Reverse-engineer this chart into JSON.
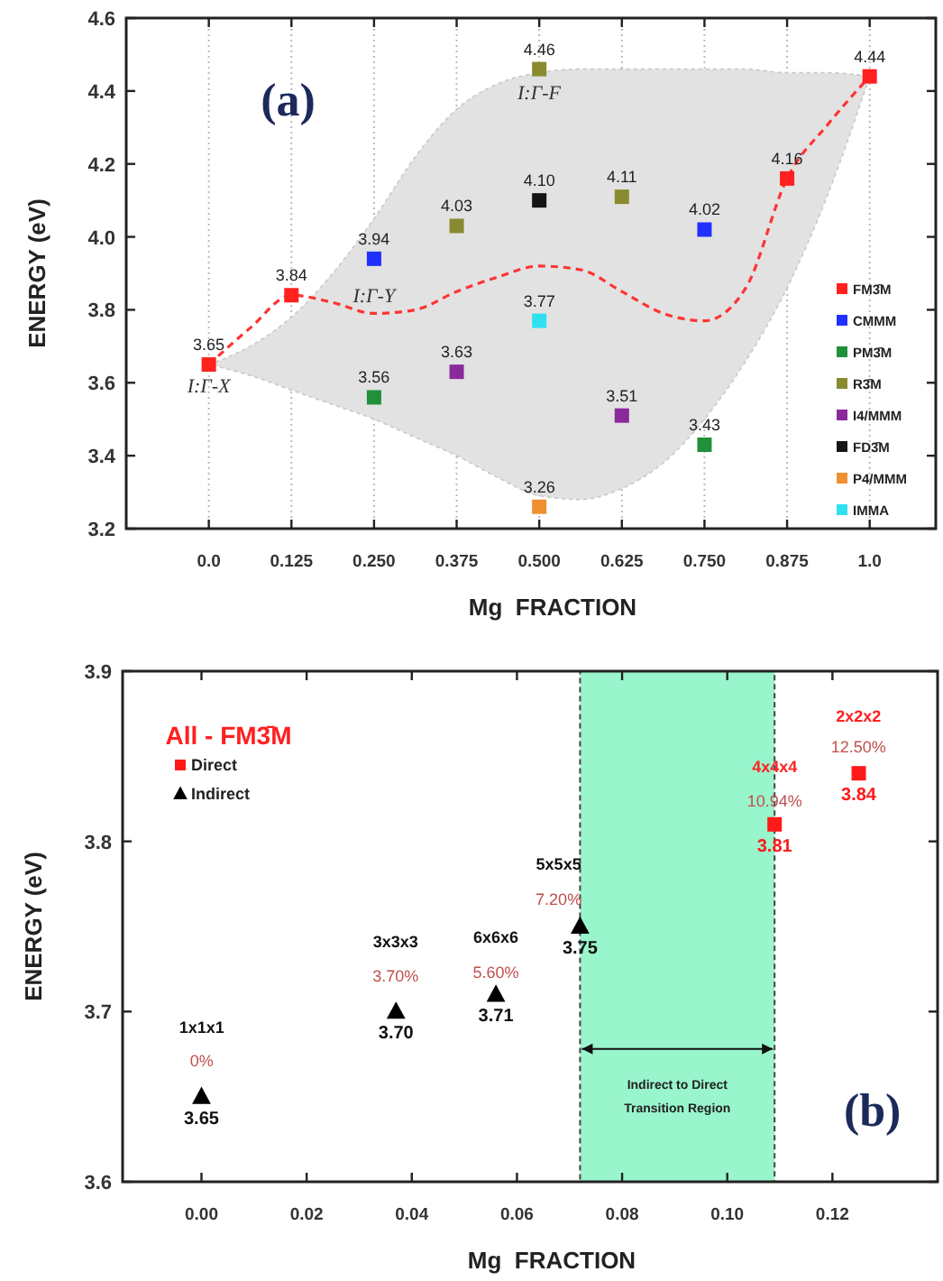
{
  "chart_data": [
    {
      "type": "scatter",
      "xlabel": "Mg  FRACTION",
      "ylabel": "ENERGY (eV)",
      "xlim": [
        -0.125,
        1.1
      ],
      "ylim": [
        3.2,
        4.6
      ],
      "xticks": [
        {
          "value": 0,
          "label": "0.0"
        },
        0.125,
        {
          "value": 0.25,
          "label": "0.250"
        },
        0.375,
        {
          "value": 0.5,
          "label": "0.500"
        },
        0.625,
        {
          "value": 0.75,
          "label": "0.750"
        },
        0.875,
        {
          "value": 1,
          "label": "1.0"
        }
      ],
      "yticks": [
        {
          "value": 3.2,
          "label": "3.2"
        },
        {
          "value": 3.4,
          "label": "3.4"
        },
        {
          "value": 3.6,
          "label": "3.6"
        },
        {
          "value": 3.8,
          "label": "3.8"
        },
        {
          "value": 4.0,
          "label": "4.0"
        },
        {
          "value": 4.2,
          "label": "4.2"
        },
        {
          "value": 4.4,
          "label": "4.4"
        },
        {
          "value": 4.6,
          "label": "4.6"
        }
      ],
      "grid": "x",
      "legend": "right",
      "marker": "square",
      "annotations": [
        "(a)",
        "I:Γ-X",
        "I:Γ-Y",
        "I:Γ-F"
      ],
      "series": [
        {
          "type": "line",
          "color": "#ff3333",
          "line_style": "dashed",
          "marker": "none",
          "x": [
            0,
            0.0625,
            0.125,
            0.1875,
            0.25,
            0.3125,
            0.375,
            0.4375,
            0.5,
            0.5625,
            0.625,
            0.6875,
            0.75,
            0.8125,
            0.875,
            0.9375,
            1.0
          ],
          "values": [
            3.65,
            3.75,
            3.84,
            3.82,
            3.79,
            3.8,
            3.85,
            3.89,
            3.92,
            3.91,
            3.85,
            3.79,
            3.77,
            3.86,
            4.16,
            4.31,
            4.44
          ],
          "lower": [
            3.65,
            3.62,
            3.58,
            3.54,
            3.5,
            3.45,
            3.4,
            3.34,
            3.29,
            3.28,
            3.31,
            3.38,
            3.5,
            3.66,
            3.86,
            4.12,
            4.44
          ],
          "upper": [
            3.65,
            3.7,
            3.78,
            3.9,
            4.05,
            4.22,
            4.35,
            4.42,
            4.45,
            4.46,
            4.46,
            4.46,
            4.46,
            4.46,
            4.45,
            4.45,
            4.44
          ]
        },
        {
          "name": "FM3̄M",
          "color": "#ff2020",
          "x": [
            0,
            0.125,
            0.875,
            1.0
          ],
          "values": [
            3.65,
            3.84,
            4.16,
            4.44
          ],
          "value_labels": [
            "3.65",
            "3.84",
            "4.16",
            "4.44"
          ]
        },
        {
          "name": "CMMM",
          "color": "#2030ff",
          "x": [
            0.25,
            0.75
          ],
          "values": [
            3.94,
            4.02
          ],
          "value_labels": [
            "3.94",
            "4.02"
          ]
        },
        {
          "name": "PM3̄M",
          "color": "#20903a",
          "x": [
            0.25,
            0.75
          ],
          "values": [
            3.56,
            3.43
          ],
          "value_labels": [
            "3.56",
            "3.43"
          ]
        },
        {
          "name": "R3̄M",
          "color": "#8a8a30",
          "x": [
            0.375,
            0.5,
            0.625
          ],
          "values": [
            4.03,
            4.46,
            4.11
          ],
          "value_labels": [
            "4.03",
            "4.46",
            "4.11"
          ]
        },
        {
          "name": "I4/MMM",
          "color": "#8a2a9a",
          "x": [
            0.375,
            0.625
          ],
          "values": [
            3.63,
            3.51
          ],
          "value_labels": [
            "3.63",
            "3.51"
          ]
        },
        {
          "name": "FD3̄M",
          "color": "#151515",
          "x": [
            0.5
          ],
          "values": [
            4.1
          ],
          "value_labels": [
            "4.10"
          ]
        },
        {
          "name": "P4/MMM",
          "color": "#f09030",
          "x": [
            0.5
          ],
          "values": [
            3.26
          ],
          "value_labels": [
            "3.26"
          ]
        },
        {
          "name": "IMMA",
          "color": "#30e0f0",
          "x": [
            0.5
          ],
          "values": [
            3.77
          ],
          "value_labels": [
            "3.77"
          ]
        }
      ]
    },
    {
      "type": "scatter",
      "xlabel": "Mg  FRACTION",
      "ylabel": "ENERGY (eV)",
      "xlim": [
        -0.015,
        0.14
      ],
      "ylim": [
        3.6,
        3.9
      ],
      "xticks": [
        {
          "value": 0,
          "label": "0.00"
        },
        {
          "value": 0.02,
          "label": "0.02"
        },
        {
          "value": 0.04,
          "label": "0.04"
        },
        {
          "value": 0.06,
          "label": "0.06"
        },
        {
          "value": 0.08,
          "label": "0.08"
        },
        {
          "value": 0.1,
          "label": "0.10"
        },
        {
          "value": 0.12,
          "label": "0.12"
        }
      ],
      "yticks": [
        {
          "value": 3.6,
          "label": "3.6"
        },
        {
          "value": 3.7,
          "label": "3.7"
        },
        {
          "value": 3.8,
          "label": "3.8"
        },
        {
          "value": 3.9,
          "label": "3.9"
        }
      ],
      "legend": "top left",
      "bands": [
        {
          "axis": "x",
          "from": 0.072,
          "to": 0.109,
          "label": "Indirect to Direct Transition Region",
          "color": "#99f5cc"
        }
      ],
      "annotations": [
        "All - FM3̄M",
        "(b)",
        "1x1x1",
        "0%",
        "3x3x3",
        "3.70%",
        "6x6x6",
        "5.60%",
        "5x5x5",
        "7.20%",
        "4x4x4",
        "10.94%",
        "2x2x2",
        "12.50%"
      ],
      "series": [
        {
          "name": "Direct",
          "color": "#ff1a1a",
          "marker": "square",
          "x": [
            0.109,
            0.125
          ],
          "values": [
            3.81,
            3.84
          ],
          "value_labels": [
            "3.81",
            "3.84"
          ]
        },
        {
          "name": "Indirect",
          "color": "#000000",
          "marker": "triangle",
          "x": [
            0,
            0.037,
            0.056,
            0.072
          ],
          "values": [
            3.65,
            3.7,
            3.71,
            3.75
          ],
          "value_labels": [
            "3.65",
            "3.70",
            "3.71",
            "3.75"
          ]
        }
      ]
    }
  ]
}
